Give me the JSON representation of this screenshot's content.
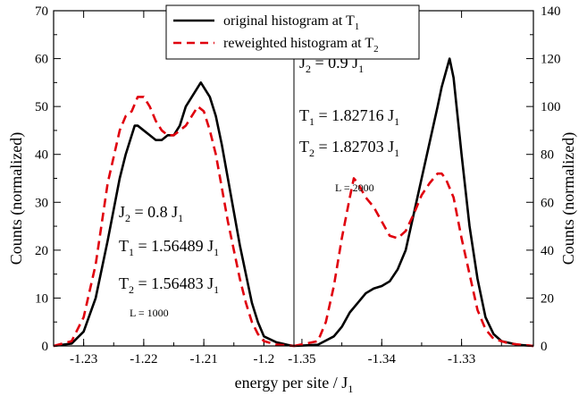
{
  "chart_data": {
    "type": "line",
    "ylabel_left": "Counts (normalized)",
    "ylabel_right": "Counts (normalized)",
    "xlabel": {
      "main": "energy per site / J",
      "sub": "1"
    },
    "legend": {
      "placement": "top-center",
      "entries": [
        {
          "main": "original histogram at T",
          "sub": "1",
          "color": "#000000",
          "dash": "solid"
        },
        {
          "main": "reweighted histogram at T",
          "sub": "2",
          "color": "#e0000d",
          "dash": "dashed"
        }
      ]
    },
    "panels": [
      {
        "id": "left",
        "xlim": [
          -1.235,
          -1.195
        ],
        "ylim": [
          0,
          70
        ],
        "xticks": [
          -1.23,
          -1.22,
          -1.21,
          -1.2
        ],
        "xtick_labels": [
          "-1.23",
          "-1.22",
          "-1.21",
          "-1.2"
        ],
        "yticks": [
          0,
          10,
          20,
          30,
          40,
          50,
          60,
          70
        ],
        "ytick_labels": [
          "0",
          "10",
          "20",
          "30",
          "40",
          "50",
          "60",
          "70"
        ],
        "annotations": [
          {
            "main": "J",
            "sub": "2",
            "rest": " = 0.8 J",
            "sub2": "1"
          },
          {
            "main": "T",
            "sub": "1",
            "rest": " = 1.56489 J",
            "sub2": "1"
          },
          {
            "main": "T",
            "sub": "2",
            "rest": " = 1.56483 J",
            "sub2": "1"
          },
          {
            "main": "L = 1000",
            "sub": "",
            "rest": "",
            "sub2": ""
          }
        ],
        "series": [
          {
            "name": "original histogram at T1",
            "color": "#000000",
            "dash": "solid",
            "x": [
              -1.235,
              -1.232,
              -1.23,
              -1.228,
              -1.226,
              -1.224,
              -1.223,
              -1.222,
              -1.2215,
              -1.221,
              -1.22,
              -1.219,
              -1.218,
              -1.217,
              -1.216,
              -1.215,
              -1.214,
              -1.213,
              -1.212,
              -1.211,
              -1.2105,
              -1.21,
              -1.209,
              -1.208,
              -1.207,
              -1.206,
              -1.205,
              -1.204,
              -1.203,
              -1.202,
              -1.201,
              -1.2,
              -1.198,
              -1.196,
              -1.195
            ],
            "y": [
              0,
              0.5,
              3,
              10,
              22,
              35,
              40,
              44,
              46,
              46,
              45,
              44,
              43,
              43,
              44,
              44,
              46,
              50,
              52,
              54,
              55,
              54,
              52,
              48,
              42,
              35,
              28,
              21,
              15,
              9,
              5,
              2,
              0.8,
              0.2,
              0
            ]
          },
          {
            "name": "reweighted histogram at T2",
            "color": "#e0000d",
            "dash": "dashed",
            "x": [
              -1.235,
              -1.232,
              -1.23,
              -1.228,
              -1.226,
              -1.224,
              -1.223,
              -1.222,
              -1.221,
              -1.22,
              -1.219,
              -1.218,
              -1.217,
              -1.216,
              -1.215,
              -1.214,
              -1.213,
              -1.212,
              -1.211,
              -1.21,
              -1.209,
              -1.208,
              -1.207,
              -1.206,
              -1.205,
              -1.204,
              -1.203,
              -1.202,
              -1.201,
              -1.2,
              -1.198,
              -1.196,
              -1.195
            ],
            "y": [
              0,
              1,
              6,
              17,
              34,
              45,
              48,
              49,
              52,
              52,
              50,
              47,
              45,
              44,
              44,
              45,
              46,
              48,
              50,
              49,
              45,
              40,
              33,
              26,
              20,
              14,
              9,
              5,
              2.5,
              1,
              0.3,
              0.1,
              0
            ]
          }
        ]
      },
      {
        "id": "right",
        "xlim": [
          -1.351,
          -1.321
        ],
        "ylim": [
          0,
          140
        ],
        "xticks": [
          -1.35,
          -1.34,
          -1.33
        ],
        "xtick_labels": [
          "-1.35",
          "-1.34",
          "-1.33"
        ],
        "yticks": [
          0,
          20,
          40,
          60,
          80,
          100,
          120,
          140
        ],
        "ytick_labels": [
          "0",
          "20",
          "40",
          "60",
          "80",
          "100",
          "120",
          "140"
        ],
        "annotations": [
          {
            "main": "J",
            "sub": "2",
            "rest": " = 0.9 J",
            "sub2": "1"
          },
          {
            "main": "T",
            "sub": "1",
            "rest": " = 1.82716 J",
            "sub2": "1"
          },
          {
            "main": "T",
            "sub": "2",
            "rest": " = 1.82703 J",
            "sub2": "1"
          },
          {
            "main": "L = 2000",
            "sub": "",
            "rest": "",
            "sub2": ""
          }
        ],
        "series": [
          {
            "name": "original histogram at T1",
            "color": "#000000",
            "dash": "solid",
            "x": [
              -1.351,
              -1.348,
              -1.346,
              -1.345,
              -1.344,
              -1.343,
              -1.342,
              -1.341,
              -1.34,
              -1.339,
              -1.338,
              -1.337,
              -1.336,
              -1.335,
              -1.334,
              -1.333,
              -1.3325,
              -1.332,
              -1.3315,
              -1.331,
              -1.33,
              -1.329,
              -1.328,
              -1.327,
              -1.326,
              -1.325,
              -1.323,
              -1.321
            ],
            "y": [
              0,
              0.5,
              4,
              8,
              14,
              18,
              22,
              24,
              25,
              27,
              32,
              40,
              55,
              70,
              85,
              100,
              108,
              114,
              120,
              112,
              80,
              50,
              28,
              12,
              5,
              2,
              0.5,
              0
            ]
          },
          {
            "name": "reweighted histogram at T2",
            "color": "#e0000d",
            "dash": "dashed",
            "x": [
              -1.351,
              -1.348,
              -1.347,
              -1.346,
              -1.345,
              -1.344,
              -1.3435,
              -1.343,
              -1.342,
              -1.341,
              -1.34,
              -1.339,
              -1.338,
              -1.337,
              -1.336,
              -1.335,
              -1.334,
              -1.333,
              -1.3325,
              -1.332,
              -1.331,
              -1.33,
              -1.329,
              -1.328,
              -1.327,
              -1.326,
              -1.324,
              -1.321
            ],
            "y": [
              0,
              2,
              10,
              25,
              45,
              62,
              70,
              68,
              62,
              58,
              52,
              46,
              45,
              48,
              55,
              63,
              68,
              72,
              72,
              70,
              62,
              45,
              30,
              15,
              7,
              3,
              1,
              0
            ]
          }
        ]
      }
    ]
  }
}
